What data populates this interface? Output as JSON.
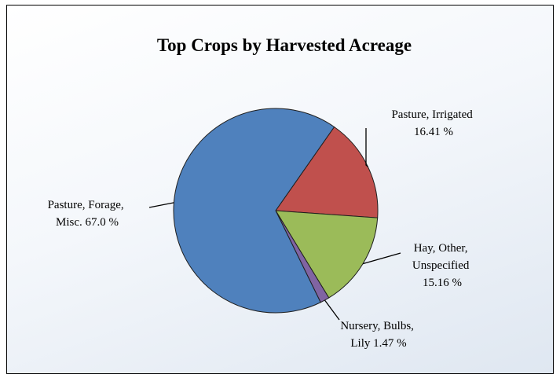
{
  "chart_data": {
    "type": "pie",
    "title": "Top Crops by Harvested Acreage",
    "slices": [
      {
        "name": "Pasture, Irrigated",
        "value": 16.41,
        "color": "#c0504d",
        "label_lines": [
          "Pasture, Irrigated",
          "16.41 %"
        ]
      },
      {
        "name": "Hay, Other, Unspecified",
        "value": 15.16,
        "color": "#9bbb59",
        "label_lines": [
          "Hay, Other,",
          "Unspecified",
          "15.16 %"
        ]
      },
      {
        "name": "Nursery, Bulbs, Lily",
        "value": 1.47,
        "color": "#8064a2",
        "label_lines": [
          "Nursery, Bulbs,",
          "Lily  1.47 %"
        ]
      },
      {
        "name": "Pasture, Forage, Misc.",
        "value": 67.0,
        "color": "#4f81bd",
        "label_lines": [
          "Pasture, Forage,",
          "Misc.  67.0 %"
        ]
      }
    ]
  }
}
